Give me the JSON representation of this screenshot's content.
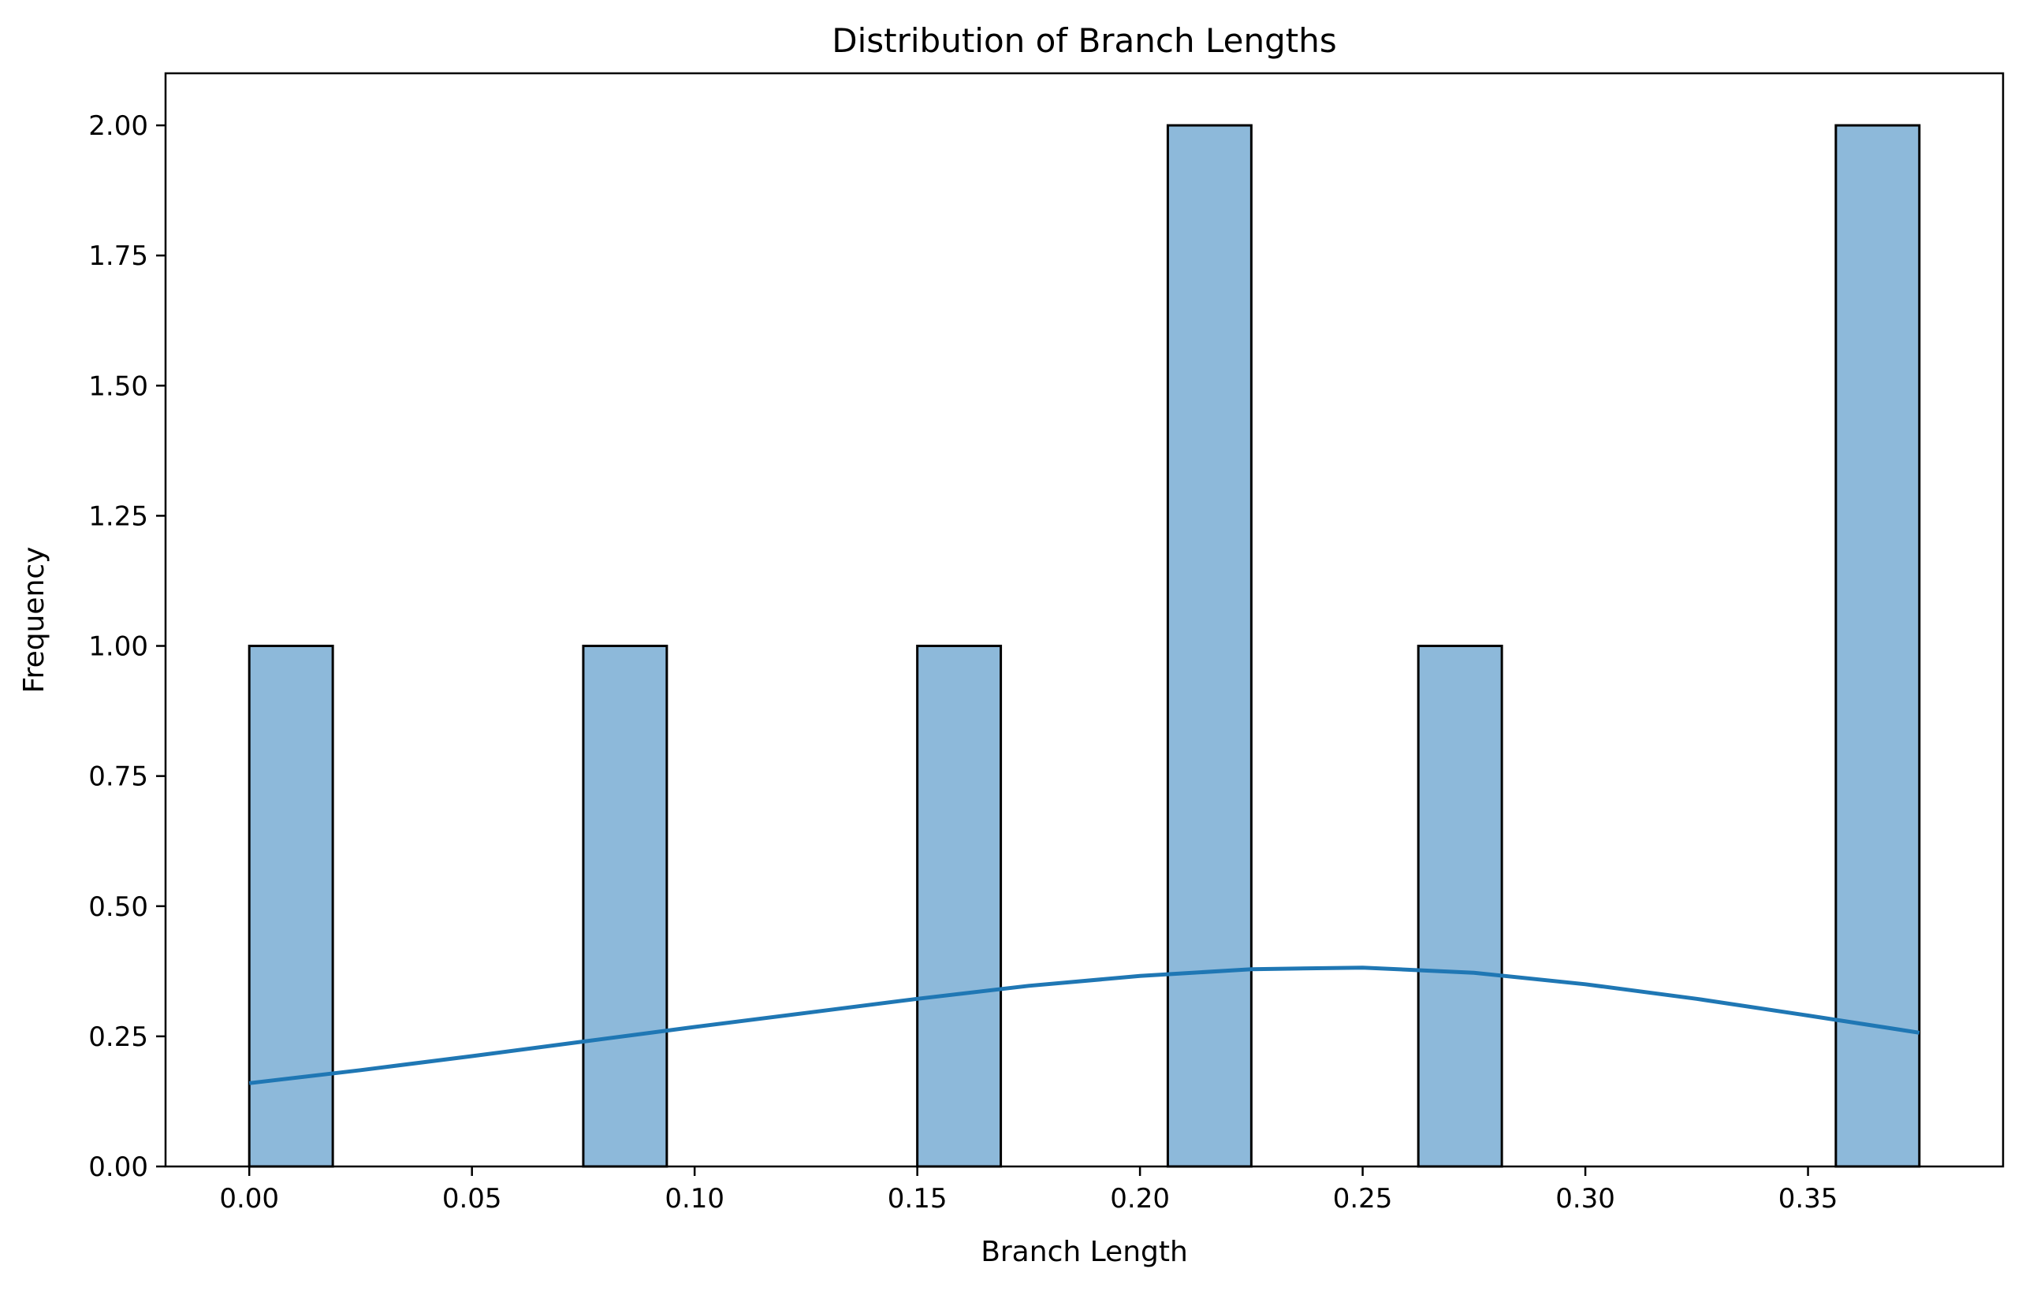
{
  "chart_data": {
    "type": "bar",
    "title": "Distribution of Branch Lengths",
    "xlabel": "Branch Length",
    "ylabel": "Frequency",
    "xlim": [
      -0.0188,
      0.3938
    ],
    "ylim": [
      0,
      2.1
    ],
    "x_ticks": [
      "0.00",
      "0.05",
      "0.10",
      "0.15",
      "0.20",
      "0.25",
      "0.30",
      "0.35"
    ],
    "x_tick_values": [
      0.0,
      0.05,
      0.1,
      0.15,
      0.2,
      0.25,
      0.3,
      0.35
    ],
    "y_ticks": [
      "0.00",
      "0.25",
      "0.50",
      "0.75",
      "1.00",
      "1.25",
      "1.50",
      "1.75",
      "2.00"
    ],
    "y_tick_values": [
      0.0,
      0.25,
      0.5,
      0.75,
      1.0,
      1.25,
      1.5,
      1.75,
      2.0
    ],
    "bins": {
      "edges": [
        0.0,
        0.01875,
        0.0375,
        0.05625,
        0.075,
        0.09375,
        0.1125,
        0.13125,
        0.15,
        0.16875,
        0.1875,
        0.20625,
        0.225,
        0.24375,
        0.2625,
        0.28125,
        0.3,
        0.31875,
        0.3375,
        0.35625,
        0.375
      ],
      "counts": [
        1,
        0,
        0,
        0,
        1,
        0,
        0,
        0,
        1,
        0,
        0,
        2,
        0,
        0,
        1,
        0,
        0,
        0,
        0,
        2
      ]
    },
    "kde": {
      "x": [
        0.0,
        0.025,
        0.05,
        0.075,
        0.1,
        0.125,
        0.15,
        0.175,
        0.2,
        0.225,
        0.25,
        0.275,
        0.3,
        0.325,
        0.35,
        0.375
      ],
      "y": [
        0.16,
        0.185,
        0.212,
        0.24,
        0.268,
        0.295,
        0.322,
        0.347,
        0.366,
        0.379,
        0.382,
        0.372,
        0.35,
        0.322,
        0.29,
        0.257
      ]
    },
    "bar_color": "#8db9da",
    "edge_color": "#000000",
    "kde_color": "#1f77b4",
    "grid": false
  }
}
